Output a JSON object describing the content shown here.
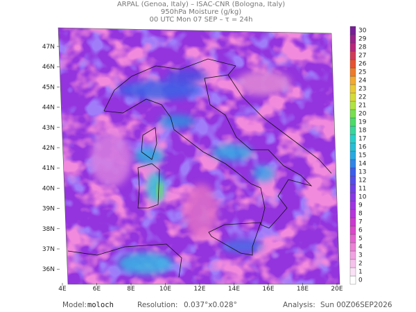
{
  "header": {
    "line1": "ARPAL (Genoa, Italy)  –  ISAC-CNR (Bologna, Italy)",
    "line2": "950hPa Moisture (g/kg)",
    "line3": "00 UTC Mon 07 SEP  –  τ = 24h"
  },
  "map": {
    "lat_labels": [
      "47N",
      "46N",
      "45N",
      "44N",
      "43N",
      "42N",
      "41N",
      "40N",
      "39N",
      "38N",
      "37N",
      "36N"
    ],
    "lon_labels": [
      "4E",
      "6E",
      "8E",
      "10E",
      "12E",
      "14E",
      "16E",
      "18E",
      "20E"
    ]
  },
  "colorbar": {
    "labels": [
      0,
      1,
      2,
      3,
      4,
      5,
      6,
      7,
      8,
      9,
      10,
      11,
      12,
      13,
      14,
      15,
      16,
      17,
      18,
      19,
      20,
      21,
      22,
      23,
      24,
      25,
      26,
      27,
      28,
      29,
      30
    ]
  },
  "footer": {
    "model_label": "Model:",
    "model": "moloch",
    "resolution_label": "Resolution:",
    "resolution": "0.037°x0.028°",
    "analysis_label": "Analysis:",
    "analysis": "Sun 00Z06SEP2026"
  }
}
